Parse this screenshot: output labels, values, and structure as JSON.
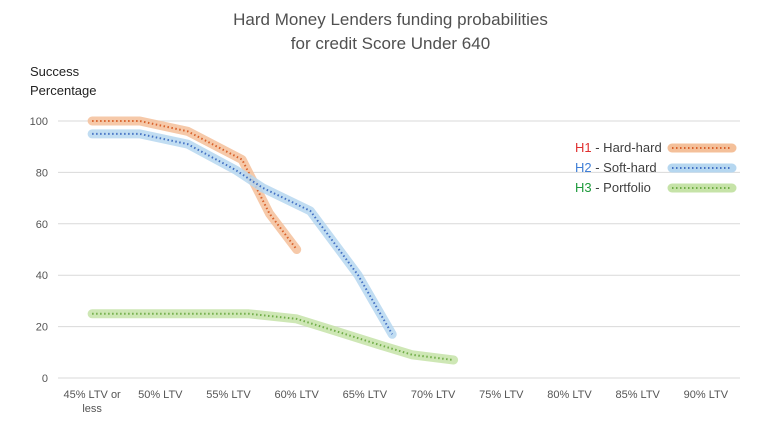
{
  "chart_data": {
    "type": "line",
    "title_line_1": "Hard Money  Lenders funding probabilities",
    "title_line_2": "for credit Score Under 640",
    "ylabel_line_1": "Success",
    "ylabel_line_2": "Percentage",
    "xlabel": "",
    "categories": [
      "45% LTV or less",
      "50% LTV",
      "55% LTV",
      "60% LTV",
      "65% LTV",
      "70% LTV",
      "75% LTV",
      "80% LTV",
      "85% LTV",
      "90% LTV"
    ],
    "ylim": [
      0,
      100
    ],
    "yticks": [
      0,
      20,
      40,
      60,
      80,
      100
    ],
    "grid": true,
    "legend_position": "right",
    "series": [
      {
        "code": "H1",
        "name": " - Hard-hard",
        "code_color": "#e03030",
        "color": "#d9622b",
        "glow": "#f4c09a",
        "points": [
          [
            0,
            100
          ],
          [
            0.7,
            100
          ],
          [
            1.4,
            96
          ],
          [
            2.2,
            85
          ],
          [
            2.6,
            64
          ],
          [
            3,
            50
          ]
        ]
      },
      {
        "code": "H2",
        "name": " - Soft-hard",
        "code_color": "#3f7ed6",
        "color": "#4472c4",
        "glow": "#b6d7f0",
        "points": [
          [
            0,
            95
          ],
          [
            0.7,
            95
          ],
          [
            1.4,
            91
          ],
          [
            2.1,
            81
          ],
          [
            2.5,
            74
          ],
          [
            3.2,
            65
          ],
          [
            3.9,
            40
          ],
          [
            4.4,
            17
          ]
        ]
      },
      {
        "code": "H3",
        "name": " - Portfolio",
        "code_color": "#1e9a3c",
        "color": "#70ad47",
        "glow": "#c6e3a8",
        "points": [
          [
            0,
            25
          ],
          [
            1.0,
            25
          ],
          [
            2.0,
            25
          ],
          [
            2.3,
            25
          ],
          [
            3.0,
            23
          ],
          [
            3.6,
            18
          ],
          [
            4.2,
            13
          ],
          [
            4.7,
            9
          ],
          [
            5.3,
            7
          ]
        ]
      }
    ]
  }
}
